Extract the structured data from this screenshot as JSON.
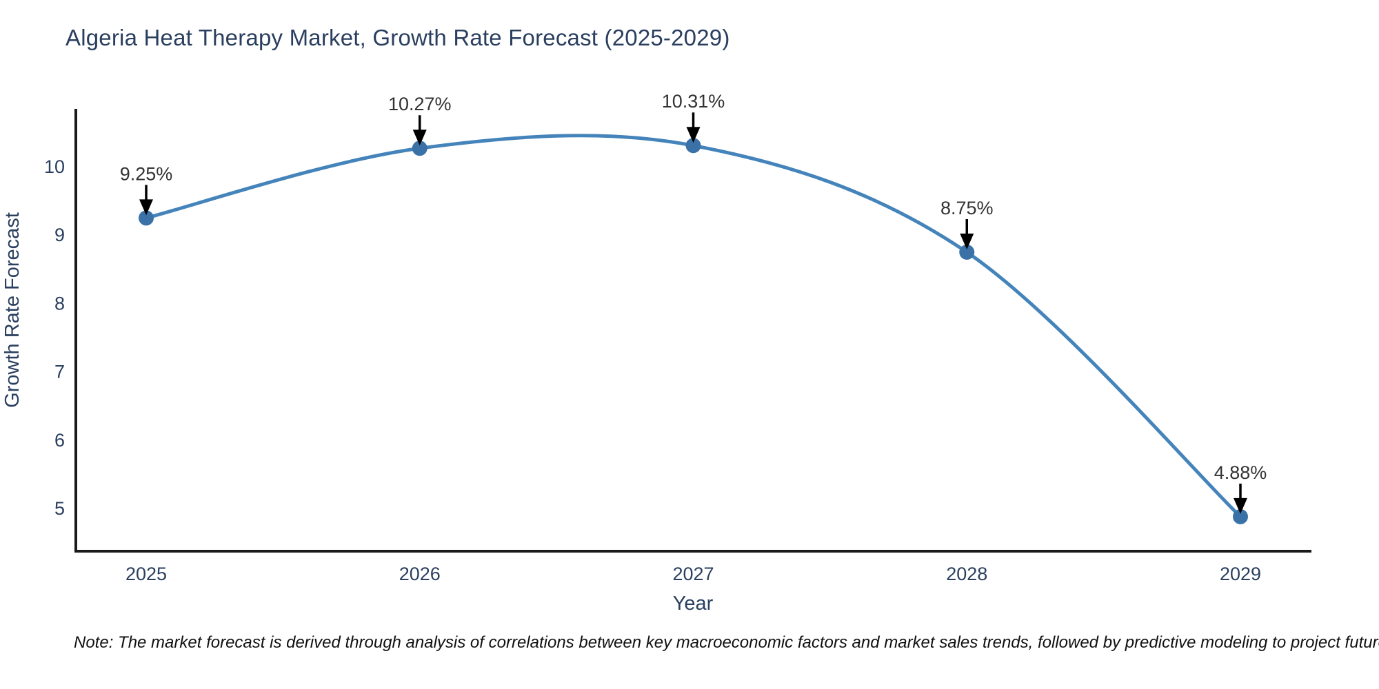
{
  "page": {
    "title": "Algeria Heat Therapy Market, Growth Rate Forecast (2025-2029)",
    "note": "Note: The market forecast is derived through analysis of correlations between key macroeconomic factors and market sales trends, followed by predictive modeling to project future sales"
  },
  "chart_data": {
    "type": "line",
    "title": "Algeria Heat Therapy Market, Growth Rate Forecast (2025-2029)",
    "xlabel": "Year",
    "ylabel": "Growth Rate Forecast",
    "categories": [
      2025,
      2026,
      2027,
      2028,
      2029
    ],
    "values": [
      9.25,
      10.27,
      10.31,
      8.75,
      4.88
    ],
    "point_labels": [
      "9.25%",
      "10.27%",
      "10.31%",
      "8.75%",
      "4.88%"
    ],
    "y_ticks": [
      10,
      9,
      8,
      7,
      6,
      5
    ],
    "x_tick_labels": [
      "2025",
      "2026",
      "2027",
      "2028",
      "2029"
    ],
    "ylim": [
      4.37,
      10.83
    ],
    "xlim": [
      2024.74,
      2029.26
    ],
    "grid": false,
    "legend": false,
    "line_shape": "spline",
    "annotations_arrow": "down-arrow-to-point",
    "colors": {
      "line": "#4484bb",
      "marker": "#3a72a8",
      "axis": "#1a1a1a",
      "tick_label": "#2a3f5f",
      "axis_title": "#2a3f5f",
      "annotation_text": "#333333",
      "annotation_arrow": "#000000",
      "title": "#2a3f5f",
      "background": "#ffffff"
    }
  }
}
